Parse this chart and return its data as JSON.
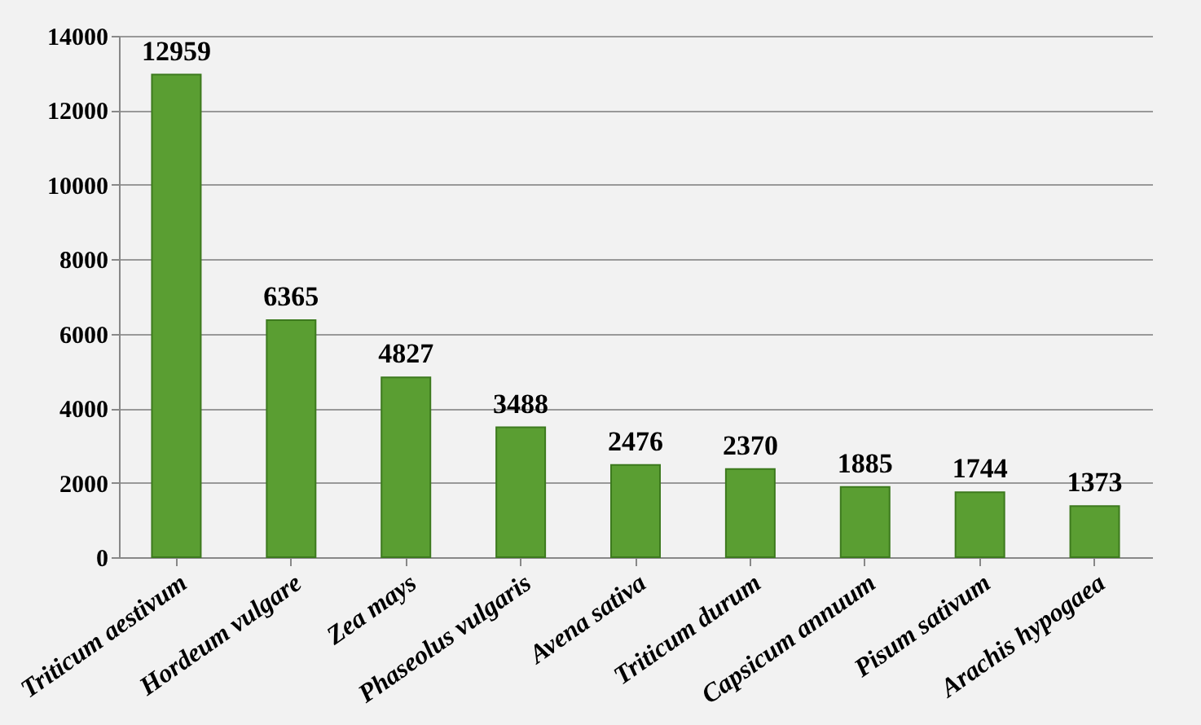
{
  "chart_data": {
    "type": "bar",
    "categories": [
      "Triticum aestivum",
      "Hordeum vulgare",
      "Zea mays",
      "Phaseolus vulgaris",
      "Avena sativa",
      "Triticum durum",
      "Capsicum annuum",
      "Pisum sativum",
      "Arachis hypogaea"
    ],
    "values": [
      12959,
      6365,
      4827,
      3488,
      2476,
      2370,
      1885,
      1744,
      1373
    ],
    "color": "#5a9e32",
    "ylim": [
      0,
      14000
    ],
    "yticks": [
      0,
      2000,
      4000,
      6000,
      8000,
      10000,
      12000,
      14000
    ],
    "grid": "y",
    "data_labels": true
  }
}
